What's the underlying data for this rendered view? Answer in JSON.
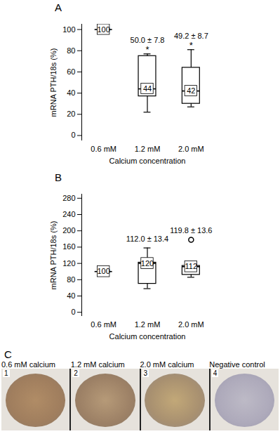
{
  "chart_data": [
    {
      "type": "box",
      "title": "A",
      "categories": [
        "0.6 mM",
        "1.2 mM",
        "2.0 mM"
      ],
      "x_label": "Calcium concentration",
      "y_label": "mRNA PTH/18s (%)",
      "ylim": [
        -5,
        105
      ],
      "yticks": [
        0,
        20,
        40,
        60,
        80,
        100
      ],
      "min": [
        100,
        22,
        27
      ],
      "q1": [
        100,
        37,
        30
      ],
      "median": [
        100,
        44,
        42
      ],
      "q3": [
        100,
        75,
        64
      ],
      "max": [
        100,
        77,
        81
      ],
      "outliers": [
        [],
        [],
        []
      ],
      "annotations": [
        null,
        "50.0 ± 7.8",
        "49.2 ± 8.7"
      ],
      "significance": [
        null,
        "*",
        "*"
      ],
      "data_labels": true,
      "color": "#000000"
    },
    {
      "type": "box",
      "title": "B",
      "categories": [
        "0.6 mM",
        "1.2 mM",
        "2.0 mM"
      ],
      "x_label": "Calcium concentration",
      "y_label": "mRNA PTH/18s (%)",
      "ylim": [
        -10,
        290
      ],
      "yticks": [
        0,
        40,
        80,
        120,
        160,
        200,
        240,
        280
      ],
      "min": [
        100,
        58,
        86
      ],
      "q1": [
        100,
        70,
        92
      ],
      "median": [
        100,
        120,
        112
      ],
      "q3": [
        100,
        122,
        114
      ],
      "max": [
        100,
        158,
        114
      ],
      "outliers": [
        [],
        [],
        [
          178
        ]
      ],
      "annotations": [
        null,
        "112.0 ± 13.4",
        "119.8 ± 13.6"
      ],
      "data_labels": true,
      "color": "#000000"
    }
  ],
  "panel_c": {
    "label": "C",
    "images": [
      {
        "caption": "0.6 mM calcium",
        "number": 1
      },
      {
        "caption": "1.2 mM calcium",
        "number": 2
      },
      {
        "caption": "2.0 mM calcium",
        "number": 3
      },
      {
        "caption": "Negative control",
        "number": 4
      }
    ]
  }
}
